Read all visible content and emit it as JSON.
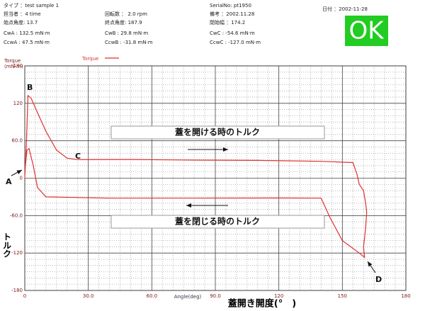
{
  "header": {
    "rows": [
      [
        "タイプ ：test sample 1",
        null,
        "SerialNo: pt1950",
        "日付 ：2002-11-28"
      ],
      [
        "担当者 ：4 time",
        "回転数 ： 2.0 rpm",
        "備考 ：2002.11.28",
        null
      ],
      [
        "始点角度: 13.7",
        "終点角度: 187.9",
        "閉始幅 ：174.2",
        null
      ],
      [
        "CwA : 132.5 mN·m",
        "CwB : 29.8 mN·m",
        "CwC : -54.6 mN·m",
        null
      ],
      [
        "CcwA : 47.5 mN·m",
        "CcwB : -31.8 mN·m",
        "CcwC : -127.0 mN·m",
        null
      ]
    ],
    "status": "OK"
  },
  "chart_data": {
    "type": "line",
    "ylabel": "Torque",
    "ylabel_unit": "(mN·m)",
    "ylabel_jp": "トルク",
    "xlabel": "Angle(deg)",
    "xlabel_jp": "蓋開き開度(°　)",
    "x": [
      0,
      0.8,
      1.5,
      3,
      6,
      10,
      15,
      20,
      25,
      50,
      80,
      110,
      140,
      155,
      157,
      158,
      160,
      161,
      161.5,
      161,
      160,
      160.5,
      158,
      150,
      144,
      140,
      120,
      80,
      40,
      10,
      6,
      4,
      2,
      1,
      0
    ],
    "series": [
      {
        "name": "Torque",
        "color": "#e03030",
        "values": [
          0,
          60,
          132.5,
          128,
          105,
          75,
          45,
          32,
          29.8,
          30,
          29,
          28.5,
          27,
          25,
          5,
          -10,
          -20,
          -40,
          -54.6,
          -80,
          -110,
          -127,
          -120,
          -100,
          -62,
          -32,
          -31.8,
          -32,
          -32,
          -30,
          -15,
          20,
          47.5,
          45,
          10
        ]
      }
    ],
    "xlim": [
      0,
      180
    ],
    "xticks": [
      0,
      {
        "value": 30,
        "label": "30.0"
      },
      {
        "value": 60,
        "label": "60.0"
      },
      {
        "value": 90,
        "label": "90.0"
      },
      120,
      150,
      180
    ],
    "ylim": [
      -180,
      180
    ],
    "yticks": [
      180,
      120,
      {
        "value": 60,
        "label": "60.0"
      },
      0,
      {
        "value": -60,
        "label": "-60.0"
      },
      -120,
      -180
    ],
    "grid": true,
    "annotations": [
      "A",
      "B",
      "C",
      "D",
      "蓋を開ける時のトルク",
      "蓋を閉じる時のトルク"
    ]
  }
}
